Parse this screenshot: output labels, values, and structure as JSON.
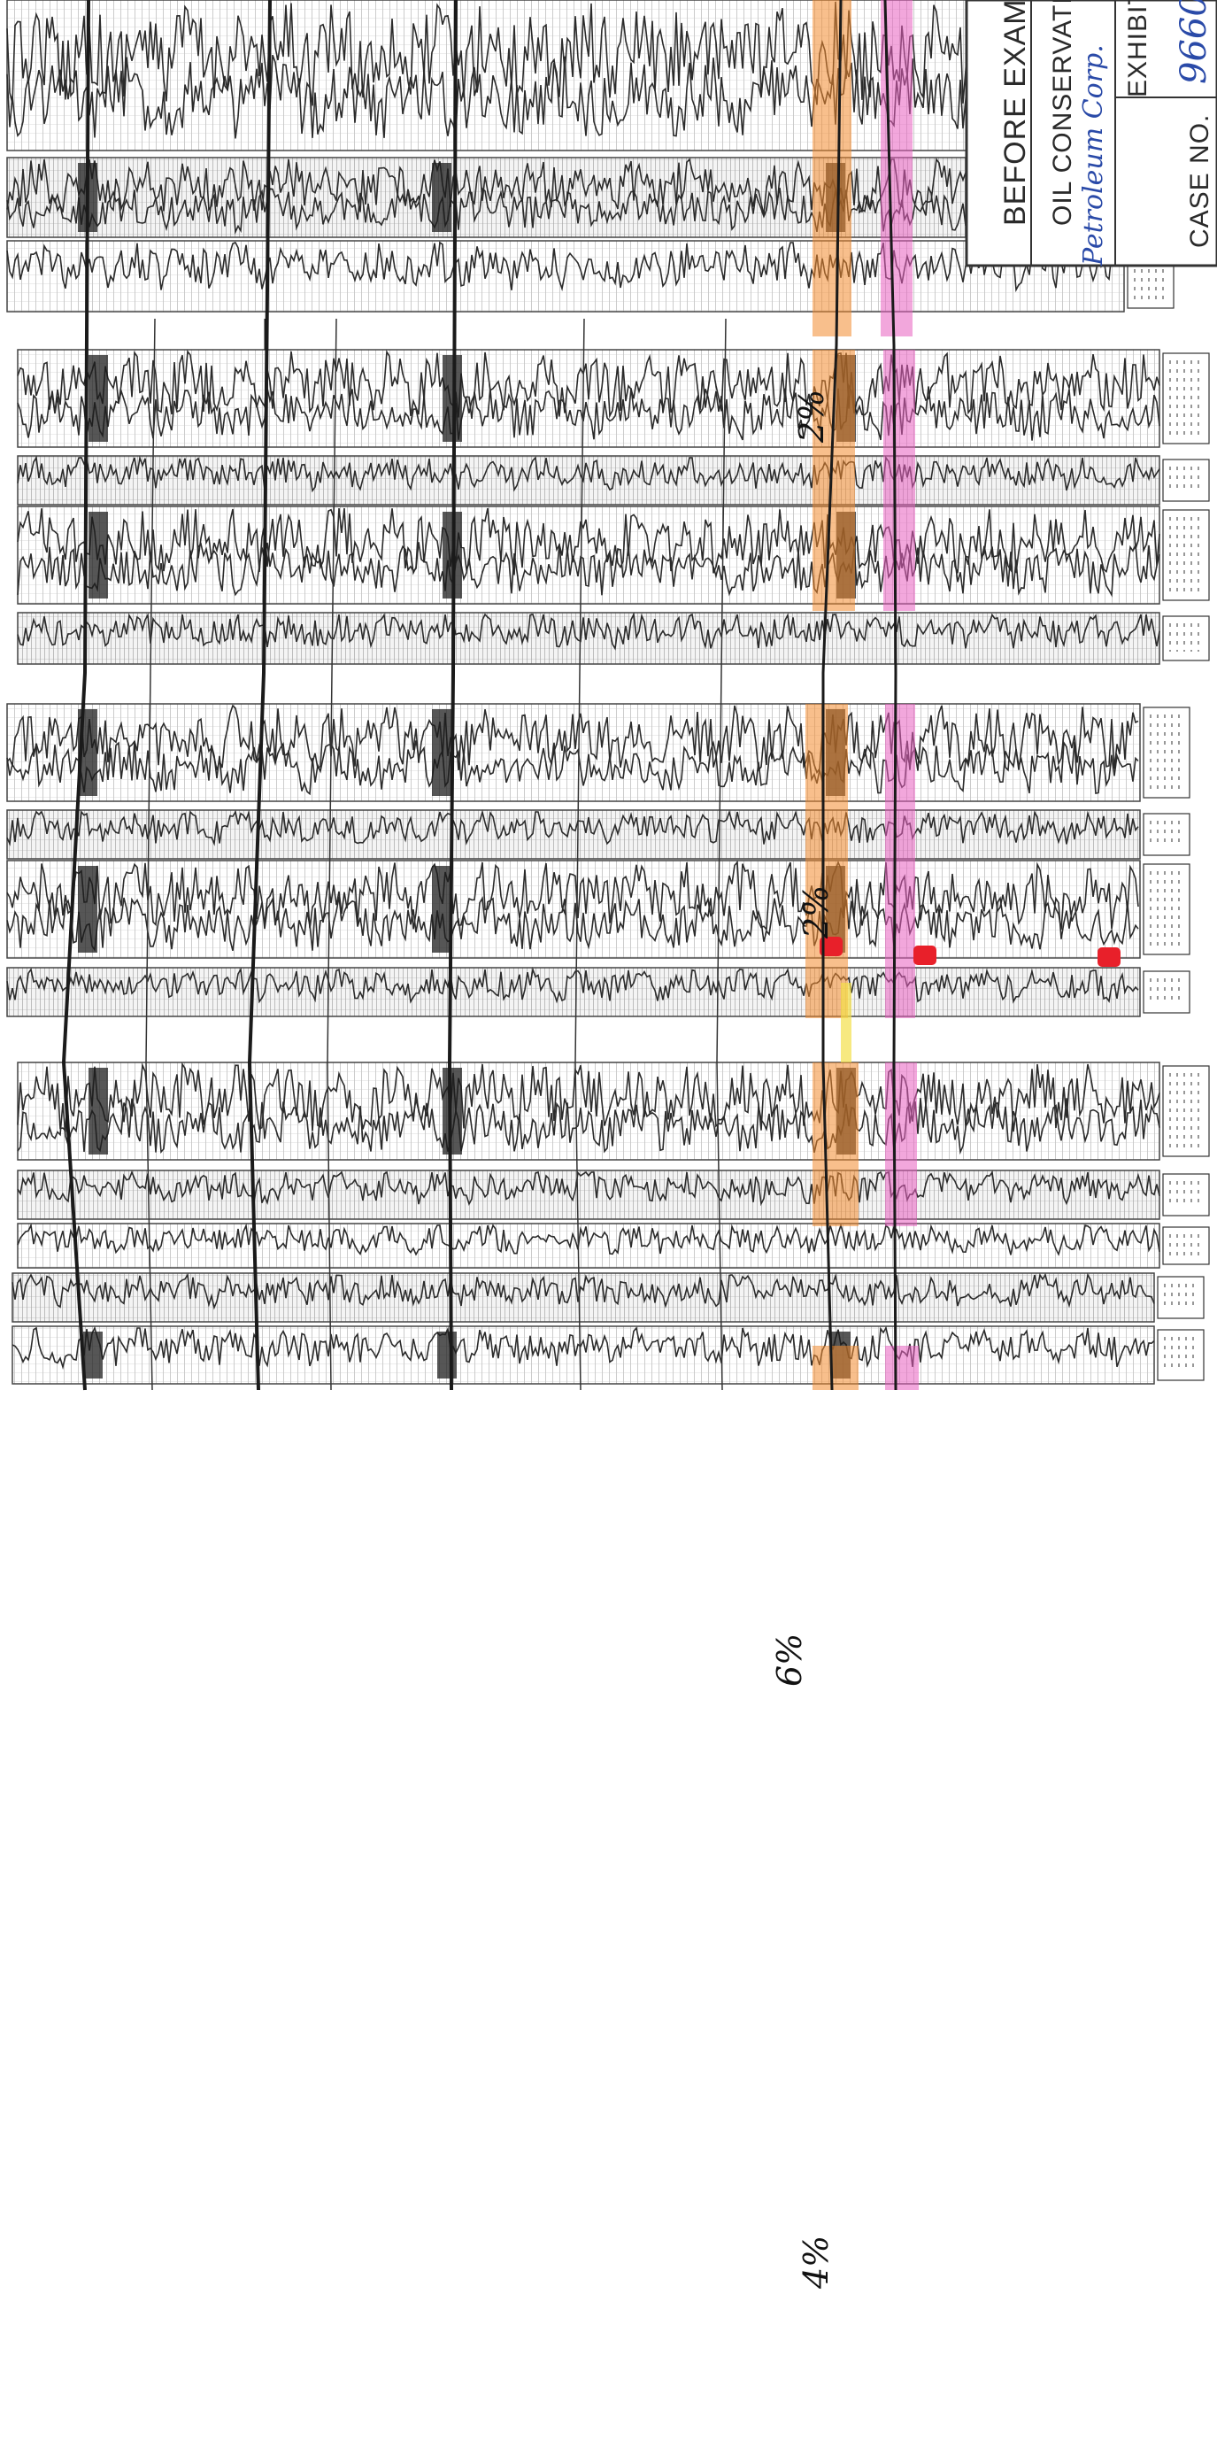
{
  "document": {
    "kind": "well-log cross-section exhibit",
    "stamp": {
      "before_examiner": "BEFORE EXAMINE",
      "oil_conservation": "OIL CONSERVATI",
      "exhibit": "EXHIBIT",
      "case_no": "CASE NO.",
      "case_number_handwritten": "9660",
      "company_handwritten": "Petroleum Corp."
    },
    "annotations": [
      {
        "text": "2%"
      },
      {
        "text": "2%"
      },
      {
        "text": "6%"
      },
      {
        "text": "4%"
      }
    ],
    "highlights": {
      "orange": "#f28a2e",
      "pink": "#e85fc0",
      "yellow": "#f4e04a",
      "red_marker": "#e8202a"
    },
    "colors": {
      "trace": "#2b2b2b",
      "grid": "#8f8f8f",
      "correlation_line": "#1a1a1a",
      "paper": "#ffffff"
    }
  }
}
